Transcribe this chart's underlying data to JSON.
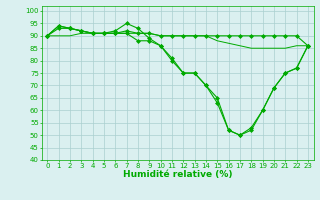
{
  "series": [
    {
      "x": [
        0,
        1,
        2,
        3,
        4,
        5,
        6,
        7,
        8,
        9,
        10,
        11,
        12,
        13,
        14,
        15,
        16,
        17,
        18,
        19,
        20,
        21,
        22,
        23
      ],
      "y": [
        90,
        94,
        93,
        92,
        91,
        91,
        91,
        92,
        91,
        91,
        90,
        90,
        90,
        90,
        90,
        90,
        90,
        90,
        90,
        90,
        90,
        90,
        90,
        86
      ],
      "color": "#00aa00",
      "marker": "D",
      "markersize": 2.0,
      "linewidth": 0.8
    },
    {
      "x": [
        0,
        1,
        2,
        3,
        4,
        5,
        6,
        7,
        8,
        9,
        10,
        11,
        12,
        13,
        14,
        15,
        16,
        17,
        18,
        19,
        20,
        21,
        22,
        23
      ],
      "y": [
        90,
        94,
        93,
        92,
        91,
        91,
        92,
        95,
        93,
        89,
        86,
        81,
        75,
        75,
        70,
        65,
        52,
        50,
        53,
        60,
        69,
        75,
        77,
        86
      ],
      "color": "#00aa00",
      "marker": "D",
      "markersize": 2.0,
      "linewidth": 0.8
    },
    {
      "x": [
        0,
        1,
        2,
        3,
        4,
        5,
        6,
        7,
        8,
        9,
        10,
        11,
        12,
        13,
        14,
        15,
        16,
        17,
        18,
        19,
        20,
        21,
        22,
        23
      ],
      "y": [
        90,
        93,
        93,
        92,
        91,
        91,
        91,
        91,
        88,
        88,
        86,
        80,
        75,
        75,
        70,
        63,
        52,
        50,
        52,
        60,
        69,
        75,
        77,
        86
      ],
      "color": "#00aa00",
      "marker": "D",
      "markersize": 2.0,
      "linewidth": 0.8
    },
    {
      "x": [
        0,
        1,
        2,
        3,
        4,
        5,
        6,
        7,
        8,
        9,
        10,
        11,
        12,
        13,
        14,
        15,
        16,
        17,
        18,
        19,
        20,
        21,
        22,
        23
      ],
      "y": [
        90,
        90,
        90,
        91,
        91,
        91,
        91,
        91,
        91,
        91,
        90,
        90,
        90,
        90,
        90,
        88,
        87,
        86,
        85,
        85,
        85,
        85,
        86,
        86
      ],
      "color": "#00aa00",
      "marker": null,
      "markersize": 0,
      "linewidth": 0.7
    }
  ],
  "xlim": [
    -0.5,
    23.5
  ],
  "ylim": [
    40,
    102
  ],
  "yticks": [
    40,
    45,
    50,
    55,
    60,
    65,
    70,
    75,
    80,
    85,
    90,
    95,
    100
  ],
  "xticks": [
    0,
    1,
    2,
    3,
    4,
    5,
    6,
    7,
    8,
    9,
    10,
    11,
    12,
    13,
    14,
    15,
    16,
    17,
    18,
    19,
    20,
    21,
    22,
    23
  ],
  "xlabel": "Humidité relative (%)",
  "xlabel_color": "#00aa00",
  "xlabel_fontsize": 6.5,
  "tick_fontsize": 5.0,
  "grid_color": "#aacfcf",
  "bg_color": "#daf0f0",
  "line_color": "#00aa00",
  "fig_width": 3.2,
  "fig_height": 2.0,
  "dpi": 100
}
